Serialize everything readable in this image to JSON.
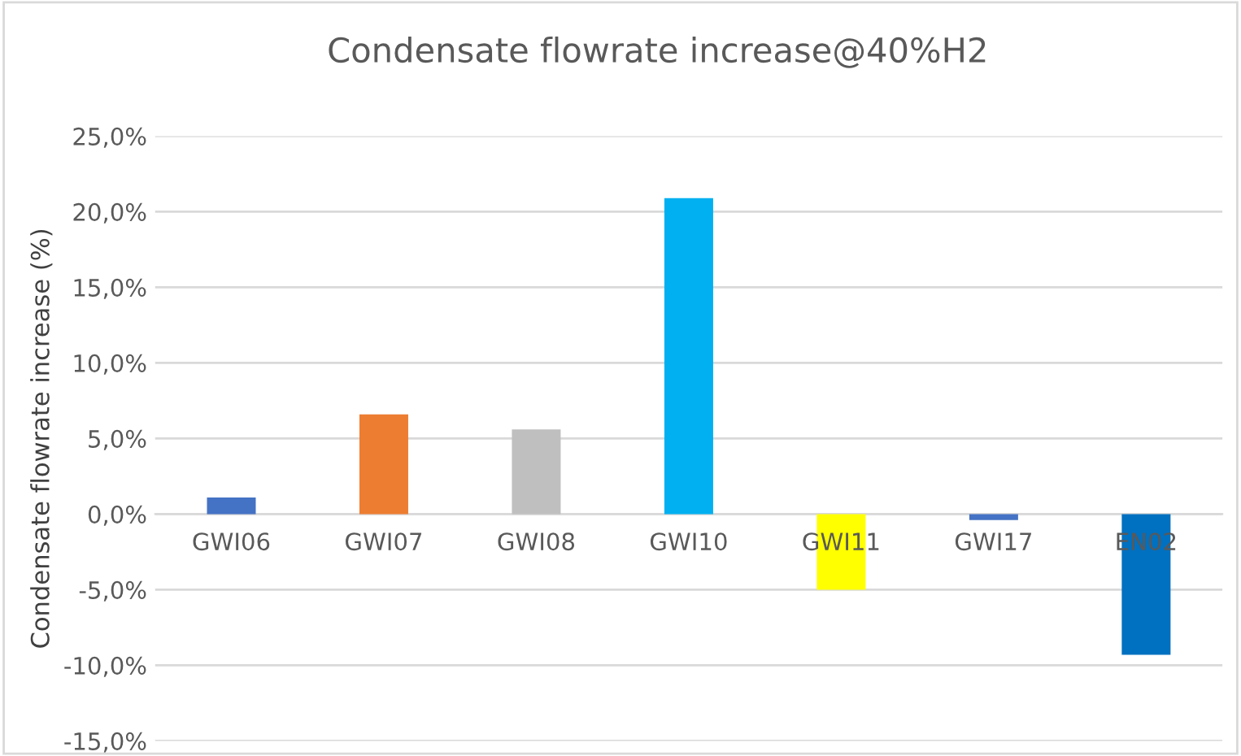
{
  "chart_data": {
    "type": "bar",
    "title": "Condensate flowrate increase@40%H2",
    "ylabel": "Condensate flowrate increase (%)",
    "categories": [
      "GWI06",
      "GWI07",
      "GWI08",
      "GWI10",
      "GWI11",
      "GWI17",
      "EN02"
    ],
    "values": [
      1.1,
      6.6,
      5.6,
      20.9,
      -5.0,
      -0.4,
      -9.3
    ],
    "colors": [
      "#4472c4",
      "#ed7d31",
      "#bfbfbf",
      "#00b0f0",
      "#ffff00",
      "#4472c4",
      "#0070c0"
    ],
    "ylim": [
      -15,
      25
    ],
    "yticks": [
      {
        "value": -15,
        "label": "-15,0%"
      },
      {
        "value": -10,
        "label": "-10,0%"
      },
      {
        "value": -5,
        "label": "-5,0%"
      },
      {
        "value": 0,
        "label": "0,0%"
      },
      {
        "value": 5,
        "label": "5,0%"
      },
      {
        "value": 10,
        "label": "10,0%"
      },
      {
        "value": 15,
        "label": "15,0%"
      },
      {
        "value": 20,
        "label": "20,0%"
      },
      {
        "value": 25,
        "label": "25,0%"
      }
    ],
    "grid": "y",
    "legend": false
  }
}
